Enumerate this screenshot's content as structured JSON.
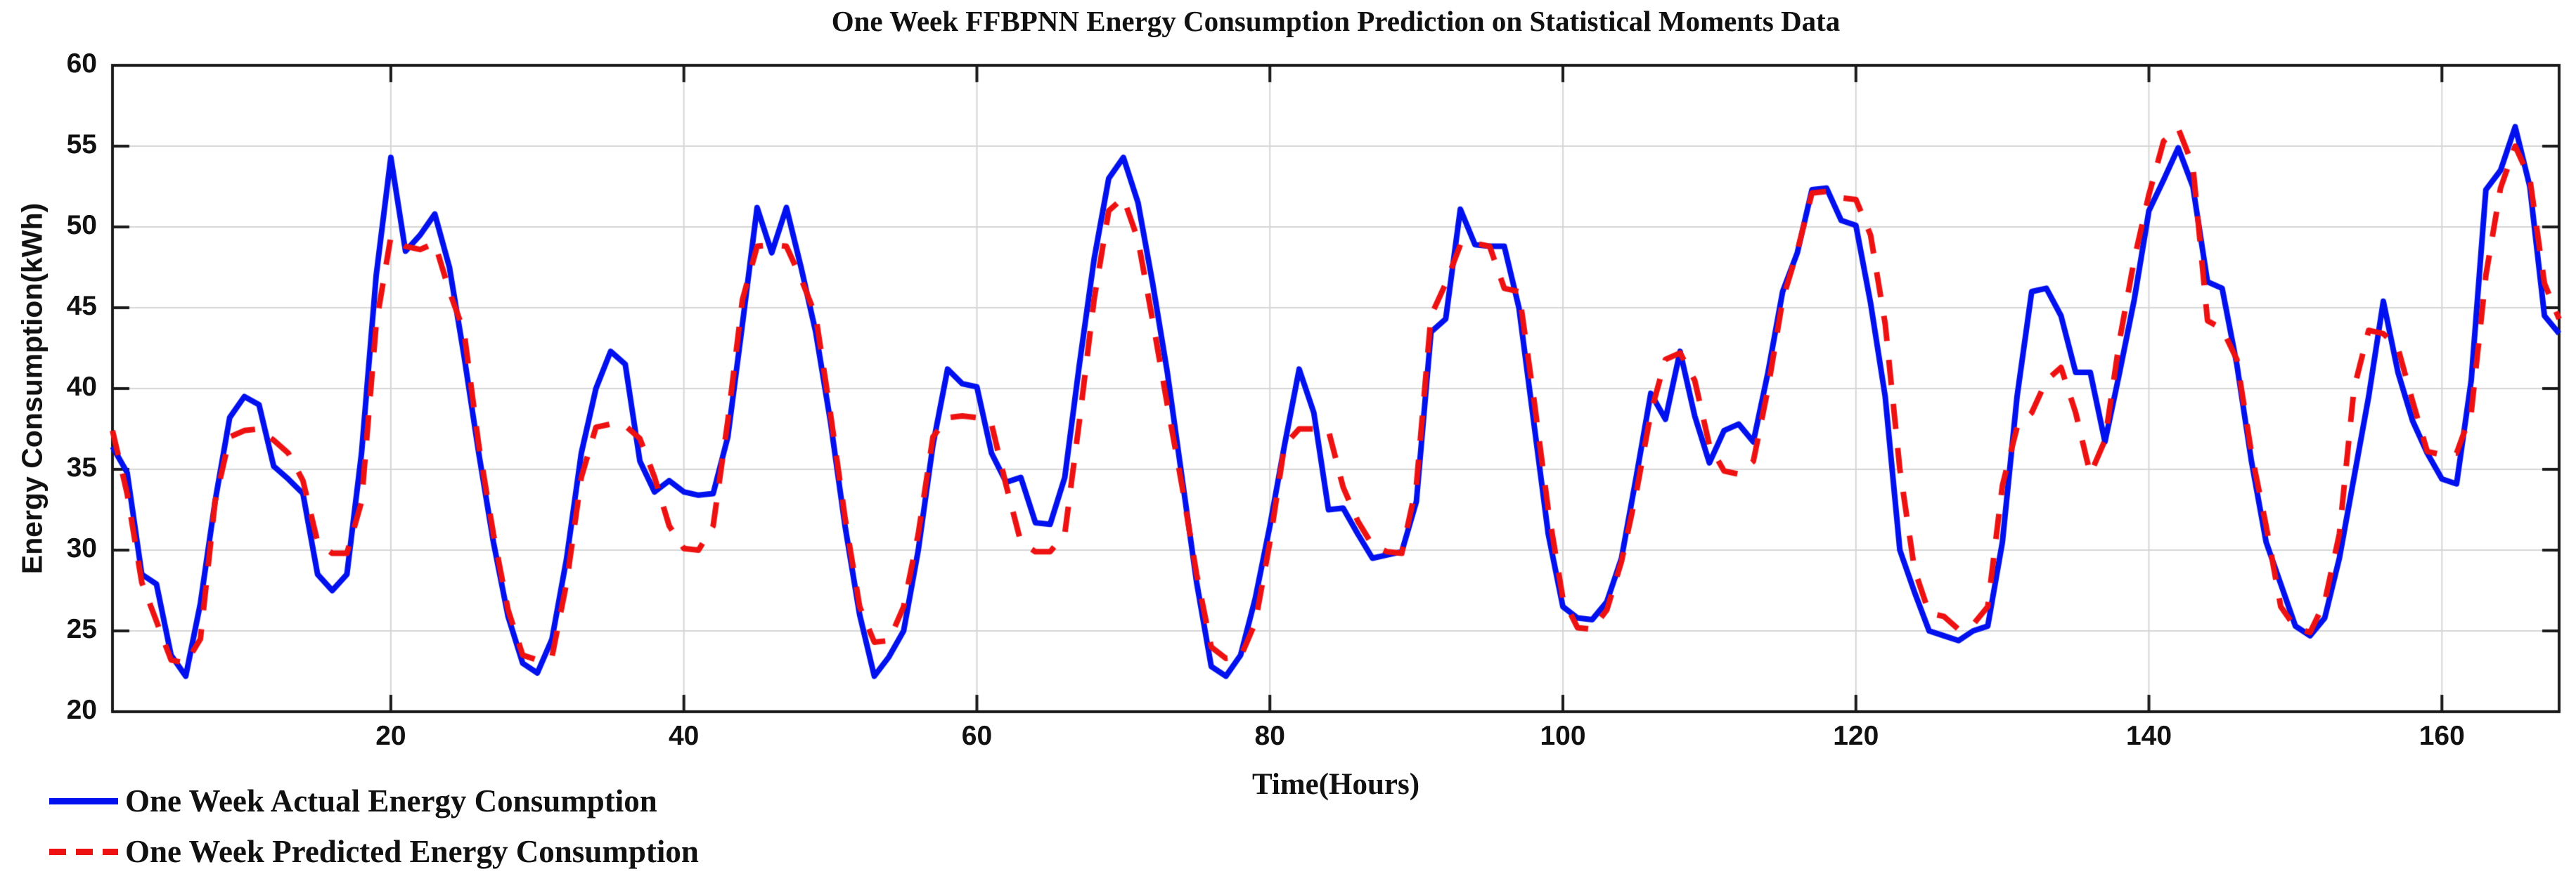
{
  "title": "One Week FFBPNN Energy Consumption Prediction on Statistical Moments Data",
  "axes": {
    "x_label": "Time(Hours)",
    "y_label": "Energy Consumption(kWh)"
  },
  "legend": {
    "actual_label": "One Week Actual Energy Consumption",
    "predicted_label": "One Week Predicted Energy Consumption"
  },
  "colors": {
    "actual_line": "#0010EE",
    "predicted_line": "#EE1111",
    "grid": "#D6D6D6",
    "axis_box": "#1A1A1A",
    "text": "#111111"
  },
  "chart_data": {
    "type": "line",
    "title": "One Week FFBPNN Energy Consumption Prediction on Statistical Moments Data",
    "xlabel": "Time(Hours)",
    "ylabel": "Energy Consumption(kWh)",
    "xlim": [
      1,
      168
    ],
    "ylim": [
      20,
      60
    ],
    "xticks": [
      20,
      40,
      60,
      80,
      100,
      120,
      140,
      160
    ],
    "yticks": [
      20,
      25,
      30,
      35,
      40,
      45,
      50,
      55,
      60
    ],
    "grid": true,
    "legend_position": "below-left",
    "x_start_hour": 1,
    "x_step_hours": 1,
    "series": [
      {
        "name": "One Week Actual Energy Consumption",
        "color": "#0010EE",
        "line_style": "solid",
        "line_width": 8,
        "values": [
          36.4,
          34.8,
          28.5,
          27.9,
          23.5,
          22.2,
          26.7,
          33.0,
          38.2,
          39.5,
          39.0,
          35.2,
          34.4,
          33.5,
          28.5,
          27.5,
          28.5,
          36.0,
          47.0,
          54.3,
          48.5,
          49.5,
          50.8,
          47.5,
          42.0,
          36.0,
          30.5,
          25.9,
          23.0,
          22.4,
          24.5,
          29.5,
          36.0,
          40.0,
          42.3,
          41.5,
          35.5,
          33.6,
          34.3,
          33.6,
          33.4,
          33.5,
          37.0,
          44.0,
          51.2,
          48.4,
          51.2,
          47.5,
          43.5,
          38.0,
          31.5,
          26.0,
          22.2,
          23.4,
          25.0,
          30.0,
          36.5,
          41.2,
          40.3,
          40.1,
          36.0,
          34.2,
          34.5,
          31.7,
          31.6,
          34.5,
          41.5,
          48.0,
          53.0,
          54.3,
          51.5,
          46.5,
          41.0,
          34.5,
          28.0,
          22.8,
          22.2,
          23.5,
          27.0,
          31.5,
          36.5,
          41.2,
          38.5,
          32.5,
          32.6,
          31.0,
          29.5,
          29.7,
          29.9,
          33.0,
          43.5,
          44.3,
          51.1,
          48.9,
          48.8,
          48.8,
          45.0,
          38.0,
          31.0,
          26.5,
          25.8,
          25.7,
          26.8,
          29.5,
          34.5,
          39.7,
          38.1,
          42.3,
          38.3,
          35.4,
          37.4,
          37.8,
          36.7,
          41.0,
          46.0,
          48.4,
          52.3,
          52.4,
          50.4,
          50.1,
          45.3,
          39.5,
          30.0,
          27.4,
          25.0,
          24.7,
          24.4,
          25.0,
          25.3,
          30.5,
          39.5,
          46.0,
          46.2,
          44.5,
          41.0,
          41.0,
          36.7,
          41.0,
          45.5,
          51.0,
          52.9,
          54.9,
          52.5,
          46.6,
          46.2,
          41.5,
          35.5,
          30.5,
          27.9,
          25.3,
          24.7,
          25.8,
          29.5,
          34.5,
          39.5,
          45.4,
          41.0,
          38.0,
          36.0,
          34.4,
          34.1,
          40.5,
          52.3,
          53.5,
          56.2,
          52.5,
          44.5,
          43.4
        ]
      },
      {
        "name": "One Week Predicted Energy Consumption",
        "color": "#EE1111",
        "line_style": "dashed",
        "line_width": 8,
        "values": [
          37.4,
          33.5,
          28.0,
          25.6,
          23.2,
          23.0,
          24.5,
          33.0,
          37.0,
          37.4,
          37.5,
          36.8,
          36.0,
          34.3,
          30.5,
          29.8,
          29.8,
          33.0,
          44.0,
          49.4,
          48.8,
          48.6,
          49.0,
          46.0,
          43.5,
          36.5,
          31.0,
          26.3,
          23.5,
          23.2,
          23.4,
          28.0,
          34.5,
          37.6,
          37.8,
          37.7,
          36.9,
          34.5,
          31.5,
          30.1,
          30.0,
          31.5,
          38.0,
          45.5,
          48.8,
          48.9,
          48.8,
          46.8,
          44.5,
          38.5,
          32.0,
          26.5,
          24.3,
          24.4,
          26.5,
          31.0,
          37.0,
          38.2,
          38.3,
          38.2,
          37.8,
          34.0,
          30.5,
          29.9,
          29.9,
          31.0,
          38.0,
          45.5,
          51.0,
          51.8,
          49.2,
          44.2,
          39.0,
          34.0,
          28.5,
          24.0,
          23.3,
          23.4,
          25.5,
          30.5,
          36.5,
          37.5,
          37.5,
          37.4,
          33.9,
          31.8,
          30.3,
          29.9,
          29.8,
          34.0,
          44.5,
          46.5,
          48.9,
          49.0,
          48.8,
          46.2,
          46.0,
          39.5,
          32.5,
          27.0,
          25.2,
          25.1,
          26.3,
          29.3,
          33.5,
          38.5,
          41.8,
          42.2,
          40.5,
          36.5,
          34.9,
          34.7,
          35.5,
          40.0,
          45.5,
          48.5,
          52.1,
          52.2,
          51.8,
          51.7,
          49.5,
          44.0,
          35.0,
          28.8,
          26.1,
          25.9,
          25.1,
          25.4,
          26.5,
          34.0,
          37.6,
          38.5,
          40.5,
          41.3,
          38.5,
          34.7,
          36.8,
          43.0,
          48.0,
          52.0,
          55.3,
          56.1,
          53.8,
          44.2,
          43.7,
          41.8,
          36.0,
          31.5,
          26.5,
          25.2,
          24.9,
          26.8,
          31.0,
          40.0,
          43.6,
          43.4,
          42.5,
          39.2,
          36.1,
          35.9,
          36.0,
          38.5,
          47.0,
          52.4,
          55.0,
          53.0,
          46.5,
          44.3
        ]
      }
    ]
  }
}
